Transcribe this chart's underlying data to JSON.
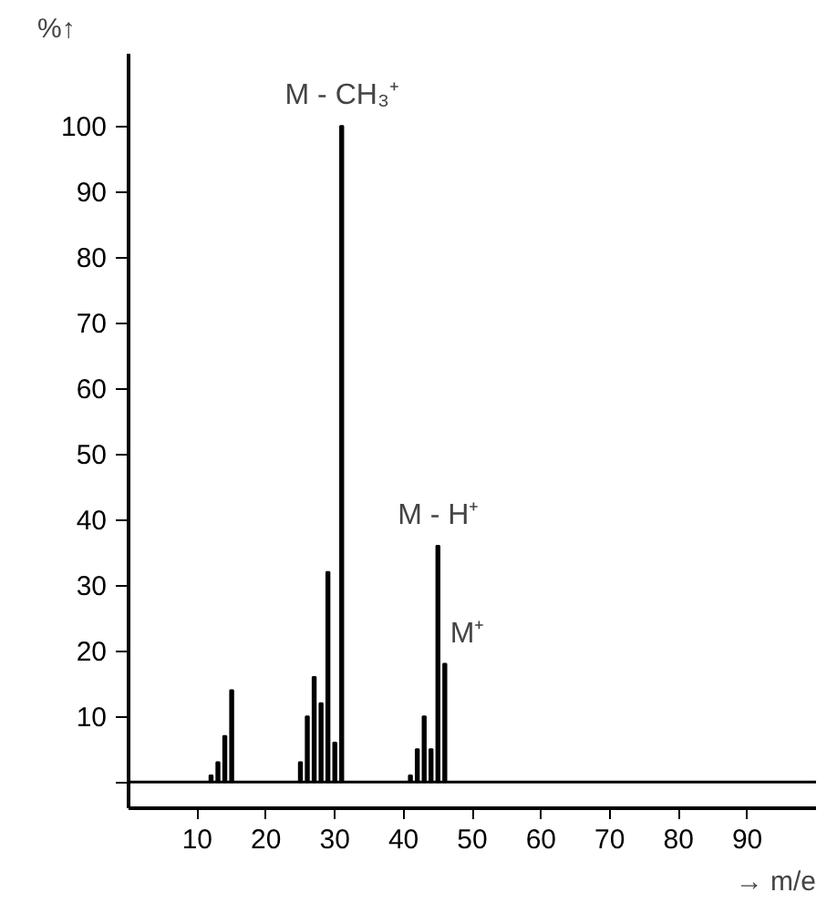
{
  "chart_data": {
    "type": "bar",
    "xlabel": "→ m/e",
    "ylabel": "%↑",
    "x": [
      12,
      13,
      14,
      15,
      25,
      26,
      27,
      28,
      29,
      30,
      31,
      41,
      42,
      43,
      44,
      45,
      46
    ],
    "values": [
      1,
      3,
      7,
      14,
      3,
      10,
      16,
      12,
      32,
      6,
      100,
      1,
      5,
      10,
      5,
      36,
      18
    ],
    "color": "#000000",
    "xlim": [
      0,
      100
    ],
    "xticks": [
      10,
      20,
      30,
      40,
      50,
      60,
      70,
      80,
      90
    ],
    "ylim": [
      -4,
      111
    ],
    "yticks": [
      {
        "value": 0,
        "label": null
      },
      10,
      20,
      30,
      40,
      50,
      60,
      70,
      80,
      90,
      100
    ],
    "ref_lines": [
      {
        "axis": "y",
        "value": 0,
        "label": null
      }
    ],
    "annotations": [
      {
        "text": "M - CH₃⁺",
        "x": 31,
        "y": 100
      },
      {
        "text": "M - H⁺",
        "x": 45,
        "y": 36
      },
      {
        "text": "M⁺",
        "x": 46,
        "y": 18
      }
    ],
    "grid": false
  }
}
